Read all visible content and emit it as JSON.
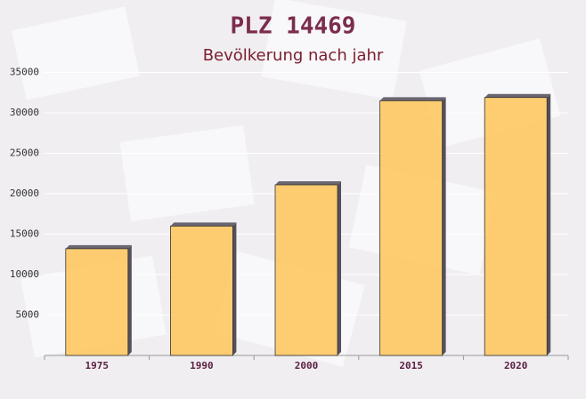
{
  "chart_data": {
    "type": "bar",
    "title": "PLZ 14469",
    "subtitle": "Bevölkerung nach jahr",
    "categories": [
      "1975",
      "1990",
      "2000",
      "2015",
      "2020"
    ],
    "values": [
      13200,
      16000,
      21100,
      31500,
      31900
    ],
    "color": "#ffc55a",
    "ylim": [
      0,
      35000
    ],
    "yticks": [
      5000,
      10000,
      15000,
      20000,
      25000,
      30000,
      35000
    ],
    "grid": true
  }
}
